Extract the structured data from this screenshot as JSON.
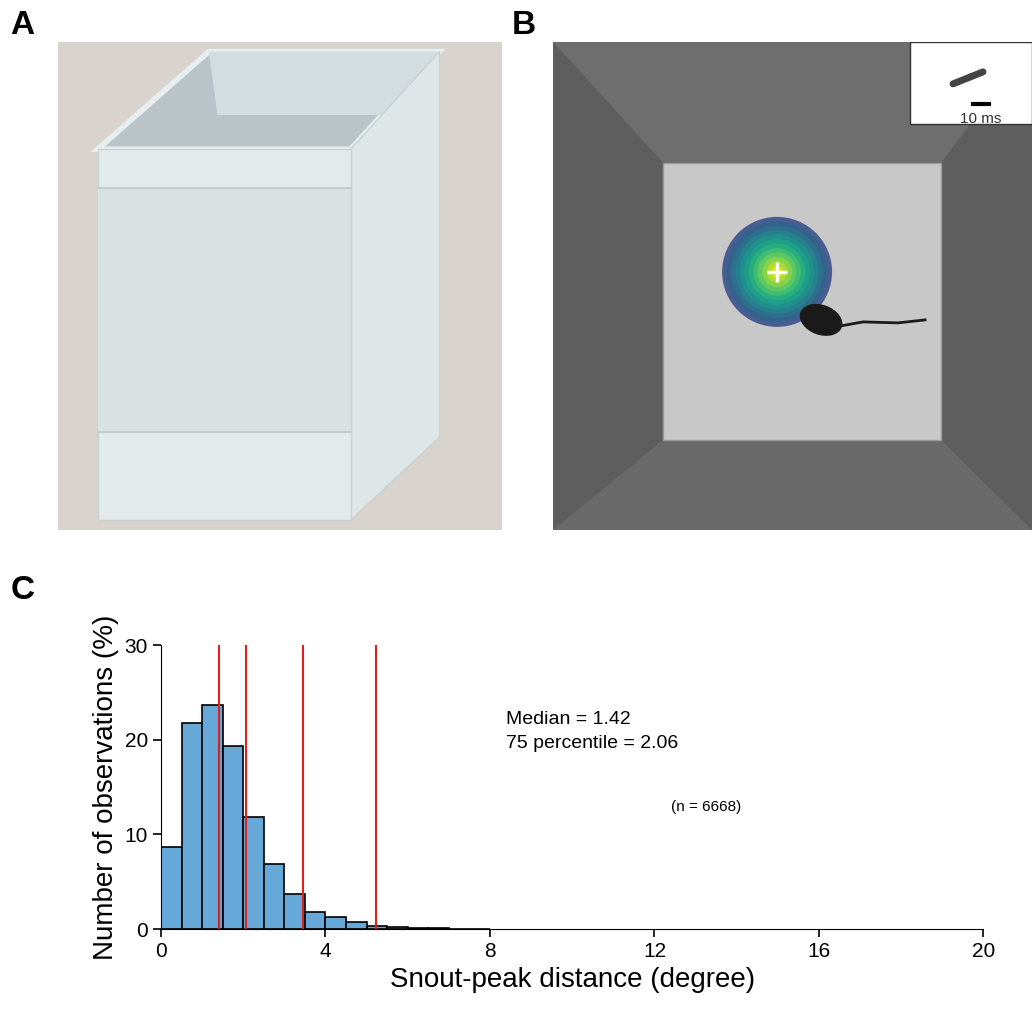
{
  "panels": {
    "A": {
      "panel_label": "A"
    },
    "B": {
      "panel_label": "B",
      "scale_bar": "10 ms"
    }
  },
  "chart_data": {
    "type": "histogram",
    "panel_label": "C",
    "x_label": "Snout-peak distance (degree)",
    "y_label": "Number of observations (%)",
    "bins": [
      0,
      0.5,
      1,
      1.5,
      2,
      2.5,
      3,
      3.5,
      4,
      4.5,
      5,
      5.5,
      6,
      6.5,
      7,
      7.5,
      8
    ],
    "values": [
      8.66,
      21.75,
      23.65,
      19.4,
      11.8,
      6.86,
      3.7,
      1.8,
      1.27,
      0.74,
      0.35,
      0.2,
      0.12,
      0.1,
      0.06,
      0.05
    ],
    "color": "#66a9d9",
    "xlim": [
      0,
      20
    ],
    "ylim": [
      0,
      30
    ],
    "xticks": [
      0,
      4,
      8,
      12,
      16,
      20
    ],
    "yticks": [
      0,
      10,
      20,
      30
    ],
    "reference_lines": [
      1.42,
      2.06,
      3.45,
      5.22
    ],
    "annotations": [
      "Median = 1.42",
      "75 percentile = 2.06",
      "(n = 6668)"
    ]
  }
}
